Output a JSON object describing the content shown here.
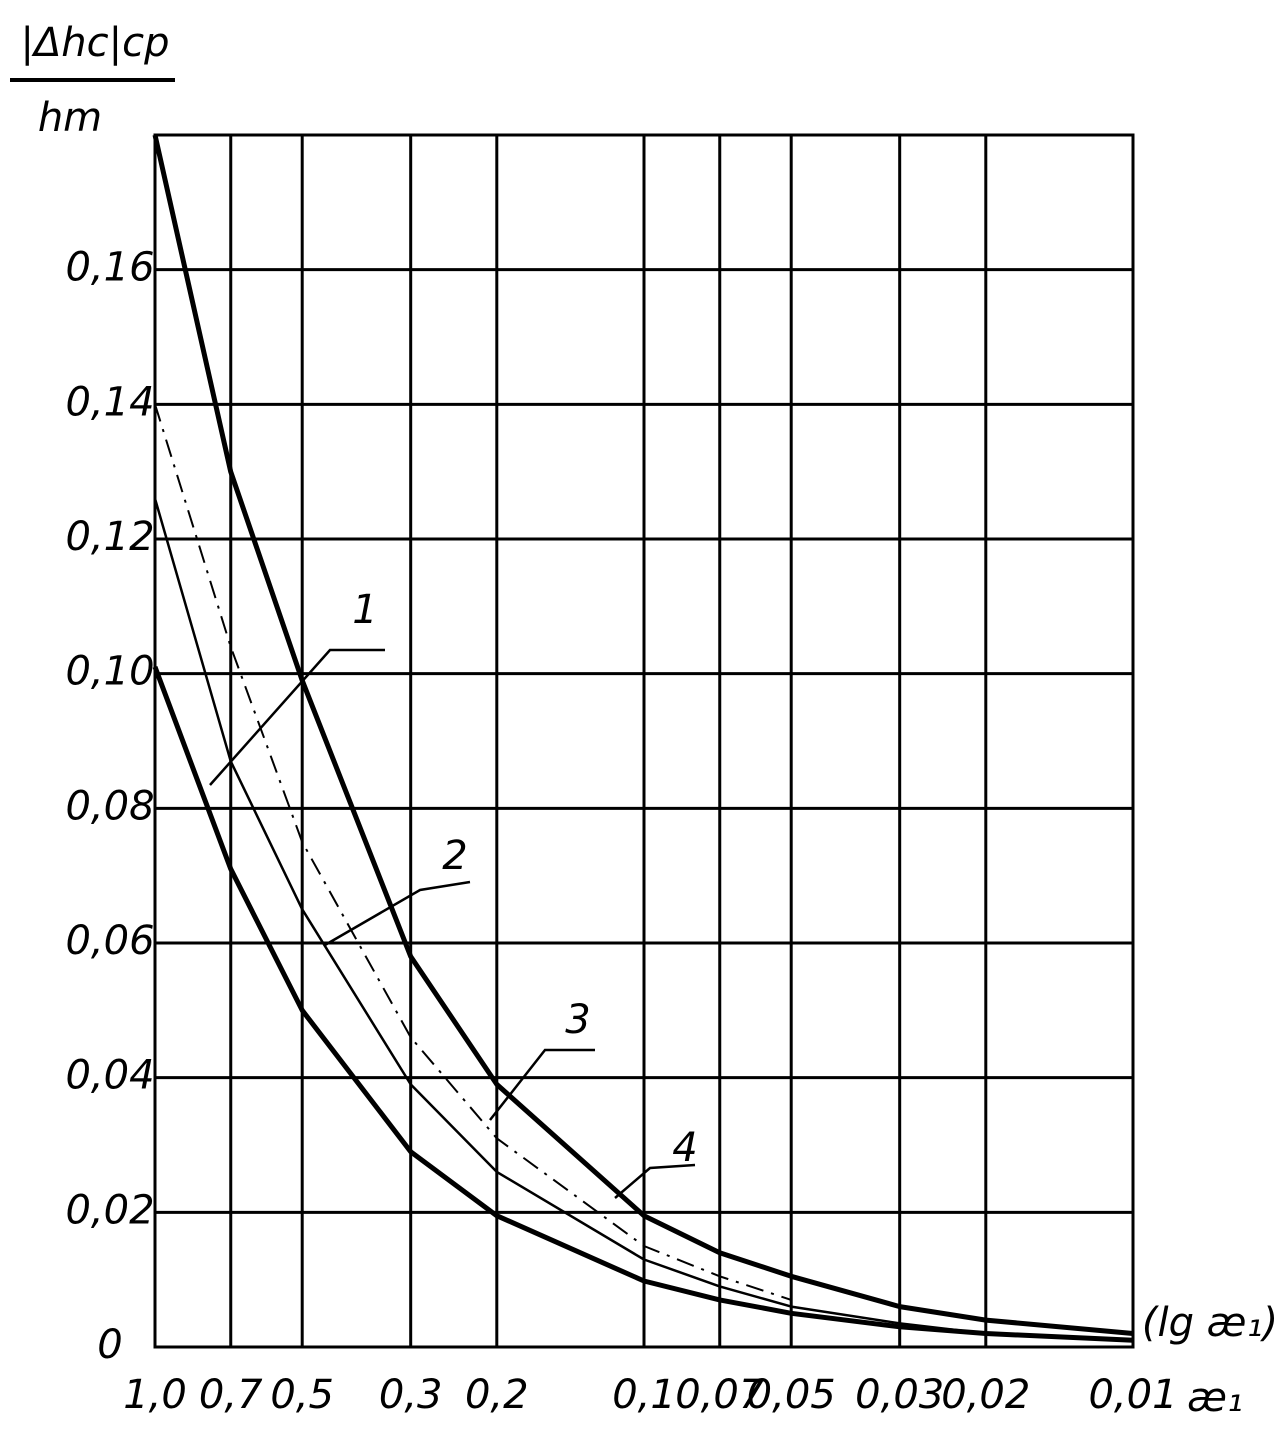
{
  "chart_data": {
    "type": "line",
    "ylabel_top": "|Δhc|cp",
    "ylabel_bottom": "hm",
    "xlabel": "(lg æ₁)",
    "xunit": "æ₁",
    "x": [
      1.0,
      0.7,
      0.5,
      0.3,
      0.2,
      0.1,
      0.07,
      0.05,
      0.03,
      0.02,
      0.01
    ],
    "series": [
      {
        "name": "1",
        "color": "#000000",
        "width": 5,
        "style": "solid",
        "values": [
          0.101,
          0.071,
          0.05,
          0.029,
          0.0195,
          0.0098,
          0.007,
          0.005,
          0.003,
          0.002,
          0.001
        ]
      },
      {
        "name": "2",
        "color": "#000000",
        "width": 2.5,
        "style": "solid",
        "values": [
          0.126,
          0.087,
          0.065,
          0.039,
          0.026,
          0.013,
          0.009,
          0.006,
          0.0035,
          0.002,
          0.001
        ]
      },
      {
        "name": "3",
        "color": "#000000",
        "width": 2,
        "style": "dash-dot",
        "values": [
          0.14,
          0.104,
          0.075,
          0.046,
          0.031,
          0.015,
          0.0105,
          0.007,
          null,
          null,
          null
        ]
      },
      {
        "name": "4",
        "color": "#000000",
        "width": 5,
        "style": "solid",
        "values": [
          0.18,
          0.13,
          0.099,
          0.058,
          0.039,
          0.0195,
          0.014,
          0.0105,
          0.006,
          0.004,
          0.002
        ]
      }
    ],
    "xlim": [
      1.0,
      0.01
    ],
    "xscale": "log",
    "xticks": [
      {
        "value": 1.0,
        "label": "1,0"
      },
      {
        "value": 0.7,
        "label": "0,7"
      },
      {
        "value": 0.5,
        "label": "0,5"
      },
      {
        "value": 0.3,
        "label": "0,3"
      },
      {
        "value": 0.2,
        "label": "0,2"
      },
      {
        "value": 0.1,
        "label": "0,1"
      },
      {
        "value": 0.07,
        "label": "0,07"
      },
      {
        "value": 0.05,
        "label": "0,05"
      },
      {
        "value": 0.03,
        "label": "0,03"
      },
      {
        "value": 0.02,
        "label": "0,02"
      },
      {
        "value": 0.01,
        "label": "0,01"
      }
    ],
    "ylim": [
      0,
      0.18
    ],
    "yticks": [
      0,
      {
        "value": 0.02,
        "label": "0,02"
      },
      {
        "value": 0.04,
        "label": "0,04"
      },
      {
        "value": 0.06,
        "label": "0,06"
      },
      {
        "value": 0.08,
        "label": "0,08"
      },
      {
        "value": 0.1,
        "label": "0,10"
      },
      {
        "value": 0.12,
        "label": "0,12"
      },
      {
        "value": 0.14,
        "label": "0,14"
      },
      {
        "value": 0.16,
        "label": "0,16"
      }
    ],
    "grid": true
  }
}
